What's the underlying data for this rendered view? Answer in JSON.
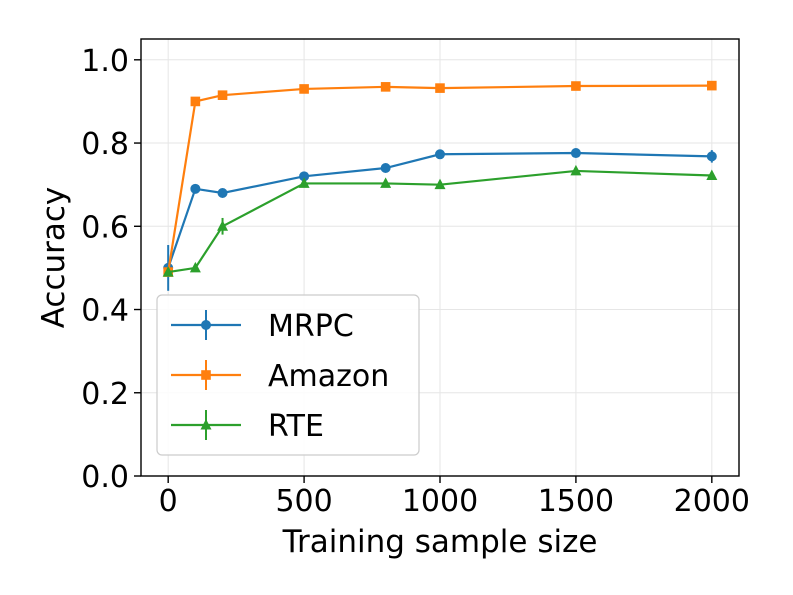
{
  "chart_data": {
    "type": "line",
    "title": "",
    "xlabel": "Training sample size",
    "ylabel": "Accuracy",
    "xlim": [
      -100,
      2100
    ],
    "ylim": [
      0.0,
      1.05
    ],
    "xticks": [
      0,
      500,
      1000,
      1500,
      2000
    ],
    "xtick_labels": [
      "0",
      "500",
      "1000",
      "1500",
      "2000"
    ],
    "yticks": [
      0.0,
      0.2,
      0.4,
      0.6,
      0.8,
      1.0
    ],
    "ytick_labels": [
      "0.0",
      "0.2",
      "0.4",
      "0.6",
      "0.8",
      "1.0"
    ],
    "grid": true,
    "legend_position": "lower-left",
    "x": [
      0,
      100,
      200,
      500,
      800,
      1000,
      1500,
      2000
    ],
    "series": [
      {
        "name": "MRPC",
        "color": "#1f77b4",
        "marker": "circle",
        "values": [
          0.5,
          0.69,
          0.68,
          0.72,
          0.74,
          0.773,
          0.776,
          0.768
        ],
        "errors": [
          0.055,
          0.005,
          0.005,
          0.005,
          0.005,
          0.006,
          0.008,
          0.015
        ]
      },
      {
        "name": "Amazon",
        "color": "#ff7f0e",
        "marker": "square",
        "values": [
          0.49,
          0.9,
          0.915,
          0.93,
          0.935,
          0.932,
          0.937,
          0.938
        ],
        "errors": [
          0.01,
          0.005,
          0.005,
          0.004,
          0.004,
          0.004,
          0.004,
          0.004
        ]
      },
      {
        "name": "RTE",
        "color": "#2ca02c",
        "marker": "triangle",
        "values": [
          0.49,
          0.5,
          0.6,
          0.703,
          0.703,
          0.7,
          0.733,
          0.722
        ],
        "errors": [
          0.01,
          0.005,
          0.02,
          0.005,
          0.005,
          0.005,
          0.005,
          0.005
        ]
      }
    ]
  }
}
